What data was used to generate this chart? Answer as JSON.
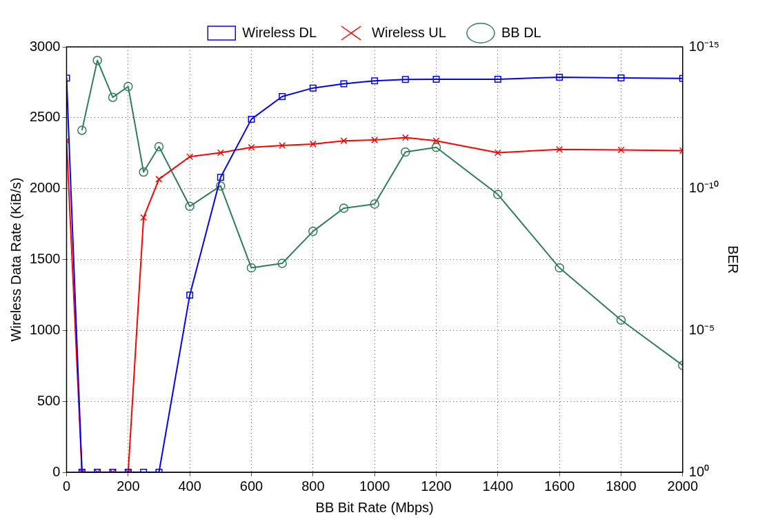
{
  "chart_data": {
    "type": "line",
    "xlabel": "BB Bit Rate (Mbps)",
    "ylabel": "Wireless Data Rate (KiB/s)",
    "y2label": "BER",
    "xlim": [
      0,
      2000
    ],
    "xticks": [
      0,
      200,
      400,
      600,
      800,
      1000,
      1200,
      1400,
      1600,
      1800,
      2000
    ],
    "ylim": [
      0,
      3000
    ],
    "yticks": [
      0,
      500,
      1000,
      1500,
      2000,
      2500,
      3000
    ],
    "y2lim": [
      1,
      1e-15
    ],
    "y2ticks": [
      {
        "value": 1,
        "label": "10⁰"
      },
      {
        "value": 1e-05,
        "label": "10⁻⁵"
      },
      {
        "value": 1e-10,
        "label": "10⁻¹⁰"
      },
      {
        "value": 1e-15,
        "label": "10⁻¹⁵"
      }
    ],
    "log": "y2",
    "grid": true,
    "legend": "top",
    "series": [
      {
        "name": "Wireless DL",
        "color": "#0000ff",
        "marker": "square",
        "x": [
          0,
          50,
          100,
          150,
          200,
          250,
          300,
          400,
          500,
          600,
          700,
          800,
          900,
          1000,
          1100,
          1200,
          1400,
          1600,
          1800,
          2000
        ],
        "values": [
          2780,
          0,
          0,
          0,
          0,
          0,
          0,
          1250,
          2080,
          2490,
          2650,
          2710,
          2740,
          2760,
          2770,
          2772,
          2772,
          2786,
          2781,
          2778
        ]
      },
      {
        "name": "Wireless UL",
        "color": "#ff0000",
        "marker": "cross",
        "x": [
          0,
          50,
          100,
          150,
          200,
          250,
          300,
          400,
          500,
          600,
          700,
          800,
          900,
          1000,
          1100,
          1200,
          1400,
          1600,
          1800,
          2000
        ],
        "values": [
          2338,
          0,
          0,
          0,
          0,
          1797,
          2067,
          2226,
          2254,
          2291,
          2305,
          2315,
          2338,
          2343,
          2361,
          2338,
          2254,
          2277,
          2273,
          2268
        ]
      },
      {
        "name": "BB DL",
        "color": "#2e7d55",
        "marker": "circle",
        "axis": "y2",
        "x": [
          50,
          100,
          150,
          200,
          250,
          300,
          400,
          500,
          600,
          700,
          800,
          900,
          1000,
          1100,
          1200,
          1400,
          1600,
          1800,
          2000
        ],
        "values": [
          8.7e-13,
          3e-15,
          6e-14,
          2.5e-14,
          2.6e-11,
          3.3e-12,
          4.2e-10,
          8e-11,
          6.2e-08,
          4.3e-08,
          3.2e-09,
          4.9e-10,
          3.5e-10,
          5.1e-12,
          3.5e-12,
          1.6e-10,
          6.2e-08,
          4.3e-06,
          0.00017
        ]
      }
    ]
  }
}
